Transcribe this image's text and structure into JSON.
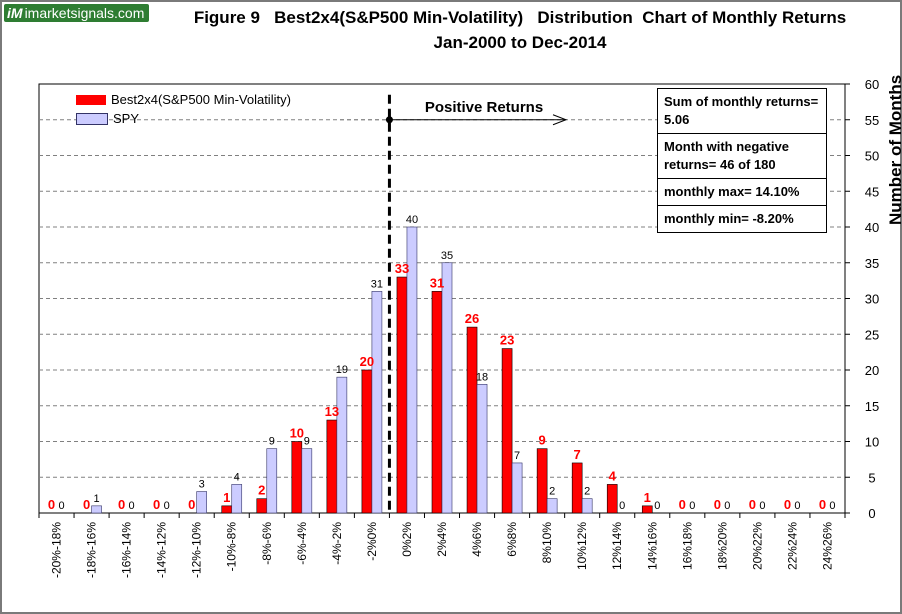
{
  "logo": {
    "mark": "iM",
    "text": "imarketsignals.com"
  },
  "title_line1": "Figure 9   Best2x4(S&P500 Min-Volatility)   Distribution  Chart of Monthly Returns",
  "title_line2": "Jan-2000 to Dec-2014",
  "annotation": "Positive Returns",
  "info_box": [
    "Sum of monthly returns= 5.06",
    "Month with negative returns=  46 of 180",
    "monthly max= 14.10%",
    "monthly min= -8.20%"
  ],
  "colors": {
    "best": "#ff0000",
    "spy": "#ccccff",
    "spy_border": "#333366",
    "grid": "#808080"
  },
  "chart_data": {
    "type": "bar",
    "categories": [
      "-20%-18%",
      "-18%-16%",
      "-16%-14%",
      "-14%-12%",
      "-12%-10%",
      "-10%-8%",
      "-8%-6%",
      "-6%-4%",
      "-4%-2%",
      "-2%0%",
      "0%2%",
      "2%4%",
      "4%6%",
      "6%8%",
      "8%10%",
      "10%12%",
      "12%14%",
      "14%16%",
      "16%18%",
      "18%20%",
      "20%22%",
      "22%24%",
      "24%26%"
    ],
    "series": [
      {
        "name": "Best2x4(S&P500 Min-Volatility)",
        "values": [
          0,
          0,
          0,
          0,
          0,
          1,
          2,
          10,
          13,
          20,
          33,
          31,
          26,
          23,
          9,
          7,
          4,
          1,
          0,
          0,
          0,
          0,
          0
        ]
      },
      {
        "name": "SPY",
        "values": [
          0,
          1,
          0,
          0,
          3,
          4,
          9,
          9,
          19,
          31,
          40,
          35,
          18,
          7,
          2,
          2,
          0,
          0,
          0,
          0,
          0,
          0,
          0
        ]
      }
    ],
    "ylabel": "Number of Months",
    "xlabel": "",
    "ylim": [
      0,
      60
    ],
    "yticks": [
      0,
      5,
      10,
      15,
      20,
      25,
      30,
      35,
      40,
      45,
      50,
      55,
      60
    ],
    "grid": true,
    "legend": "top-left"
  }
}
